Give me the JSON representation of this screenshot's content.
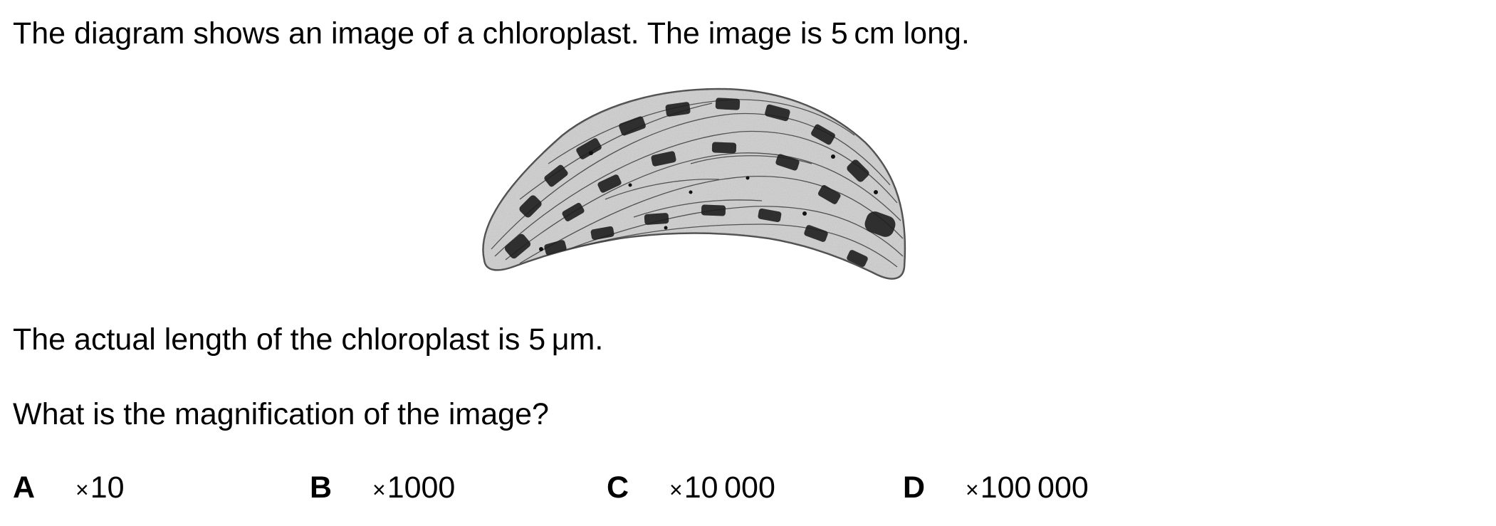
{
  "question": {
    "intro": "The diagram shows an image of a chloroplast. The image is 5 cm long.",
    "actual_length": "The actual length of the chloroplast is 5 μm.",
    "prompt": "What is the magnification of the image?"
  },
  "options": [
    {
      "letter": "A",
      "times_sign": "×",
      "value": "10"
    },
    {
      "letter": "B",
      "times_sign": "×",
      "value": "1000"
    },
    {
      "letter": "C",
      "times_sign": "×",
      "value": "10 000"
    },
    {
      "letter": "D",
      "times_sign": "×",
      "value": "100 000"
    }
  ],
  "figure": {
    "subject": "chloroplast",
    "style": "greyscale electron micrograph"
  }
}
